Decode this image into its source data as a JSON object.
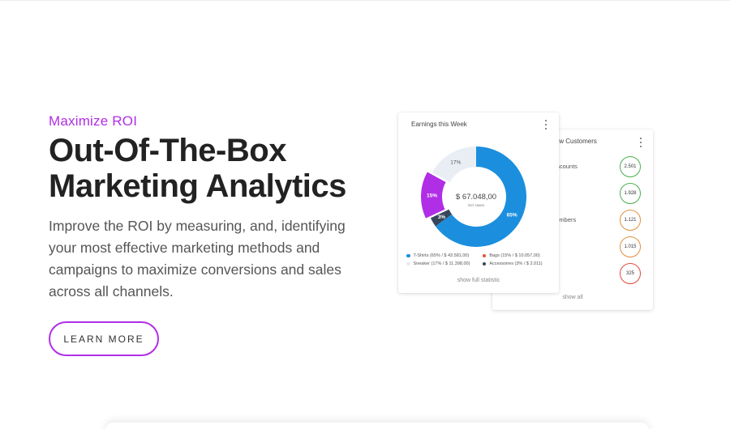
{
  "hero": {
    "eyebrow": "Maximize ROI",
    "headline_line1": "Out-Of-The-Box",
    "headline_line2": "Marketing Analytics",
    "lead": "Improve the ROI by measuring, and, identifying your most effective marketing methods and campaigns to maximize conversions and sales across all channels.",
    "button_label": "LEARN MORE",
    "accent_color": "#b02ee6"
  },
  "customers_card": {
    "title": "New Customers",
    "rows": [
      {
        "label": "Discounts",
        "count": "2.501",
        "color": "#4caf50"
      },
      {
        "label": "",
        "count": "1.928",
        "color": "#4caf50"
      },
      {
        "label": "Members",
        "count": "1.121",
        "color": "#e09040"
      },
      {
        "label": "",
        "count": "1.015",
        "color": "#e09040"
      },
      {
        "label": "",
        "count": "325",
        "color": "#e04b3c"
      }
    ],
    "show_all": "show all",
    "menu_icon": "kebab-menu-icon"
  },
  "earnings_card": {
    "title": "Earnings this Week",
    "menu_icon": "kebab-menu-icon",
    "total": "$ 67.048,00",
    "total_note": "incl. taxes",
    "show_full": "show full statistic",
    "legend": [
      {
        "label": "T-Shirts (65% / $ 43.581,00)",
        "color": "#1b8fde"
      },
      {
        "label": "Bags (15% / $ 10.057,00)",
        "color": "#e8523a"
      },
      {
        "label": "Sneaker (17% / $ 11.398,00)",
        "color": "#e8ecf3"
      },
      {
        "label": "Accessoires (3% / $ 2.011)",
        "color": "#37475a"
      }
    ]
  },
  "chart_data": {
    "type": "pie",
    "title": "Earnings this Week",
    "categories": [
      "T-Shirts",
      "Accessoires",
      "Bags",
      "Sneaker"
    ],
    "values": [
      65,
      3,
      15,
      17
    ],
    "value_labels": [
      "65%",
      "3%",
      "15%",
      "17%"
    ],
    "colors": [
      "#1b8fde",
      "#37475a",
      "#b02ee6",
      "#e9eef5"
    ],
    "highlighted": "Bags",
    "center_label": "$ 67.048,00",
    "center_sub": "incl. taxes"
  }
}
